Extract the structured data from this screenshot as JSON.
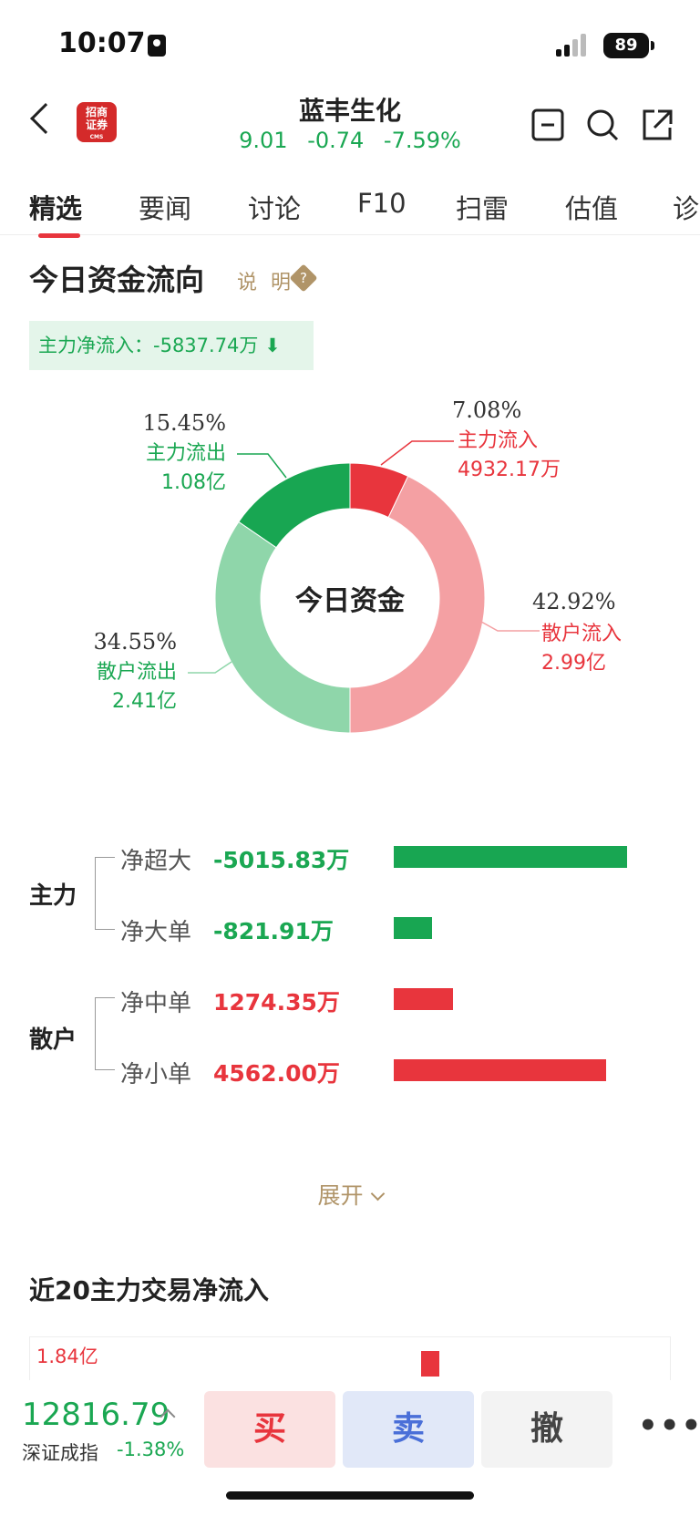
{
  "status": {
    "time": "10:07",
    "battery": "89"
  },
  "header": {
    "logo_top": "招商",
    "logo_mid": "证券",
    "logo_small": "CMS",
    "stock_name": "蓝丰生化",
    "quote": "9.01  -0.74  -7.59%"
  },
  "tabs": [
    "精选",
    "要闻",
    "讨论",
    "F10",
    "扫雷",
    "估值",
    "诊"
  ],
  "capital": {
    "title": "今日资金流向",
    "explain": "说 明",
    "net_inflow": "主力净流入：-5837.74万 ⬇",
    "donut_center": "今日资金",
    "segments": [
      {
        "pct": "7.08%",
        "label": "主力流入",
        "amount": "4932.17万",
        "value": 7.08,
        "color": "#e8353d"
      },
      {
        "pct": "42.92%",
        "label": "散户流入",
        "amount": "2.99亿",
        "value": 42.92,
        "color": "#f4a0a3"
      },
      {
        "pct": "34.55%",
        "label": "散户流出",
        "amount": "2.41亿",
        "value": 34.55,
        "color": "#8fd6aa"
      },
      {
        "pct": "15.45%",
        "label": "主力流出",
        "amount": "1.08亿",
        "value": 15.45,
        "color": "#18a652"
      }
    ]
  },
  "flows": {
    "group_main": "主力",
    "group_retail": "散户",
    "rows": [
      {
        "label": "净超大",
        "value": "-5015.83万",
        "amount": -5015.83
      },
      {
        "label": "净大单",
        "value": "-821.91万",
        "amount": -821.91
      },
      {
        "label": "净中单",
        "value": "1274.35万",
        "amount": 1274.35
      },
      {
        "label": "净小单",
        "value": "4562.00万",
        "amount": 4562.0
      }
    ]
  },
  "expand_label": "展开",
  "recent": {
    "title": "近20主力交易净流入",
    "top_label": "1.84亿"
  },
  "bottom": {
    "index_value": "12816.79",
    "index_name": "深证成指",
    "index_change": "-1.38%",
    "buy": "买",
    "sell": "卖",
    "cancel": "撤",
    "more": "•••"
  }
}
